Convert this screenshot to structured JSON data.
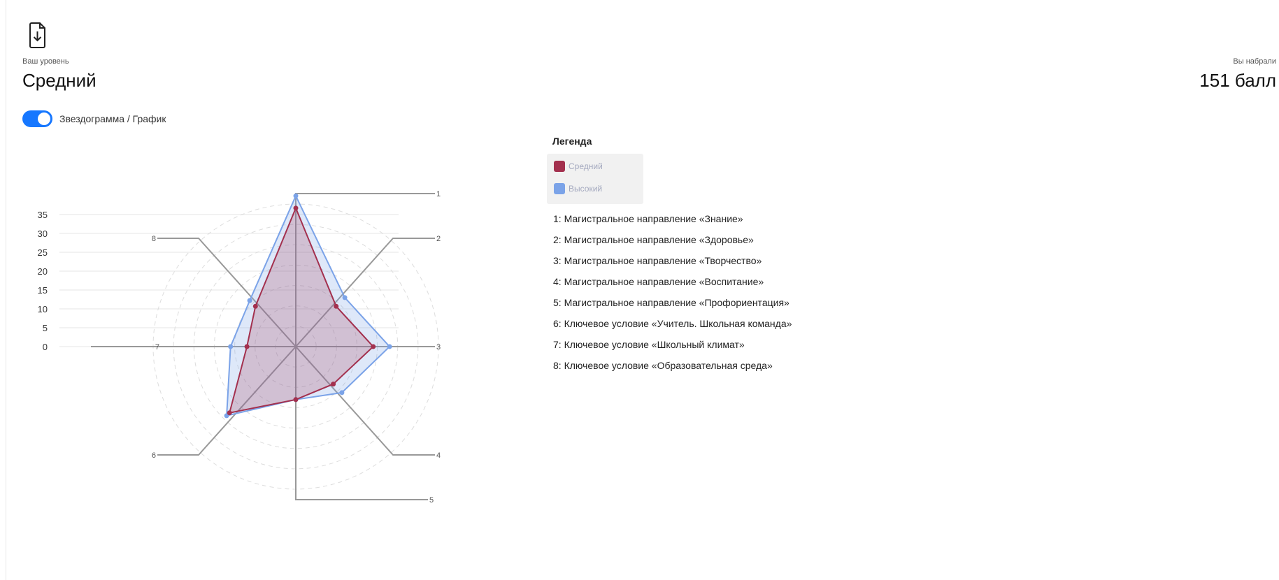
{
  "header": {
    "level_caption": "Ваш уровень",
    "level_value": "Средний",
    "score_caption": "Вы набрали",
    "score_value": "151 балл",
    "download_icon": "file-download-icon"
  },
  "toggle": {
    "label": "Звездограмма / График",
    "on": true,
    "color": "#1677ff"
  },
  "legend": {
    "title": "Легенда",
    "items": [
      {
        "label": "Средний",
        "color": "#a3304e"
      },
      {
        "label": "Высокий",
        "color": "#7ba3e8"
      }
    ]
  },
  "axis_descriptions": [
    "1: Магистральное направление «Знание»",
    "2: Магистральное направление «Здоровье»",
    "3: Магистральное направление «Творчество»",
    "4: Магистральное направление «Воспитание»",
    "5: Магистральное направление «Профориентация»",
    "6: Ключевое условие «Учитель. Школьная команда»",
    "7: Ключевое условие «Школьный климат»",
    "8: Ключевое условие «Образовательная среда»"
  ],
  "chart_data": {
    "type": "radar",
    "categories": [
      "1",
      "2",
      "3",
      "4",
      "5",
      "6",
      "7",
      "8"
    ],
    "yticks": [
      "0",
      "5",
      "10",
      "15",
      "20",
      "25",
      "30",
      "35"
    ],
    "ylim": [
      0,
      35
    ],
    "grid": true,
    "legend_position": "right",
    "series": [
      {
        "name": "Средний",
        "color": "#a3304e",
        "values": [
          34,
          14,
          19,
          13,
          13,
          23,
          12,
          14
        ]
      },
      {
        "name": "Высокий",
        "color": "#7ba3e8",
        "values": [
          37,
          17,
          23,
          16,
          13,
          24,
          16,
          16
        ]
      }
    ]
  }
}
